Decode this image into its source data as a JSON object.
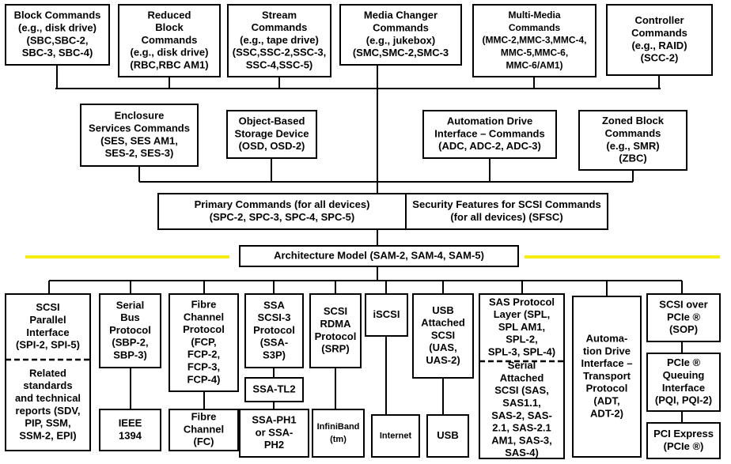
{
  "nodes": [
    {
      "lines": [
        "Block Commands",
        "(e.g., disk drive)",
        "(SBC,SBC-2,",
        "SBC-3, SBC-4)"
      ]
    },
    {
      "lines": [
        "Reduced",
        "Block",
        "Commands",
        "(e.g., disk drive)",
        "(RBC,RBC  AM1)"
      ]
    },
    {
      "lines": [
        "Stream",
        "Commands",
        "(e.g., tape drive)",
        "(SSC,SSC-2,SSC-3,",
        "SSC-4,SSC-5)"
      ]
    },
    {
      "lines": [
        "Media Changer",
        "Commands",
        "(e.g., jukebox)",
        "(SMC,SMC-2,SMC-3"
      ]
    },
    {
      "lines": [
        "Multi-Media",
        "Commands",
        "(MMC-2,MMC-3,MMC-4,",
        "MMC-5,MMC-6,",
        "MMC-6/AM1)"
      ]
    },
    {
      "lines": [
        "Controller",
        "Commands",
        "(e.g., RAID)",
        "(SCC-2)"
      ]
    },
    {
      "lines": [
        "Enclosure",
        "Services Commands",
        "(SES, SES AM1,",
        "SES-2, SES-3)"
      ]
    },
    {
      "lines": [
        "Object-Based",
        "Storage Device",
        "(OSD, OSD-2)"
      ]
    },
    {
      "lines": [
        "Automation Drive",
        "Interface – Commands",
        "(ADC, ADC-2, ADC-3)"
      ]
    },
    {
      "lines": [
        "Zoned Block",
        "Commands",
        "(e.g., SMR)",
        "(ZBC)"
      ]
    },
    {
      "lines": [
        "Primary Commands (for all devices)",
        "(SPC-2, SPC-3, SPC-4, SPC-5)"
      ]
    },
    {
      "lines": [
        "Security Features for SCSI Commands",
        "(for all devices) (SFSC)"
      ]
    },
    {
      "lines": [
        "Architecture Model (SAM-2, SAM-4, SAM-5)"
      ]
    },
    {
      "lines": [
        "SCSI",
        "Parallel",
        "Interface",
        "(SPI-2, SPI-5)"
      ],
      "lower": [
        "Related",
        "standards",
        "and technical",
        "reports (SDV,",
        "PIP, SSM,",
        "SSM-2, EPI)"
      ]
    },
    {
      "lines": [
        "Serial",
        "Bus",
        "Protocol",
        "(SBP-2,",
        "SBP-3)"
      ]
    },
    {
      "lines": [
        "IEEE",
        "1394"
      ]
    },
    {
      "lines": [
        "Fibre",
        "Channel",
        "Protocol",
        "(FCP,",
        "FCP-2,",
        "FCP-3,",
        "FCP-4)"
      ]
    },
    {
      "lines": [
        "Fibre",
        "Channel",
        "(FC)"
      ]
    },
    {
      "lines": [
        "SSA",
        "SCSI-3",
        "Protocol",
        "(SSA-",
        "S3P)"
      ]
    },
    {
      "lines": [
        "SSA-TL2"
      ]
    },
    {
      "lines": [
        "SSA-PH1",
        "or SSA-",
        "PH2"
      ]
    },
    {
      "lines": [
        "SCSI",
        "RDMA",
        "Protocol",
        "(SRP)"
      ]
    },
    {
      "lines": [
        "InfiniBand",
        "(tm)"
      ]
    },
    {
      "lines": [
        "iSCSI"
      ]
    },
    {
      "lines": [
        "Internet"
      ]
    },
    {
      "lines": [
        "USB",
        "Attached",
        "SCSI",
        "(UAS,",
        "UAS-2)"
      ]
    },
    {
      "lines": [
        "USB"
      ]
    },
    {
      "lines": [
        "SAS Protocol",
        "Layer (SPL,",
        "SPL AM1,",
        "SPL-2,",
        "SPL-3, SPL-4)"
      ],
      "lower": [
        "Serial",
        "Attached",
        "SCSI (SAS,",
        "SAS1.1,",
        "SAS-2, SAS-",
        "2.1, SAS-2.1",
        "AM1, SAS-3,",
        "SAS-4)"
      ]
    },
    {
      "lines": [
        "Automa-",
        "tion Drive",
        "Interface –",
        "Transport",
        "Protocol",
        "(ADT,",
        "ADT-2)"
      ]
    },
    {
      "lines": [
        "SCSI  over",
        "PCIe ®",
        "(SOP)"
      ]
    },
    {
      "lines": [
        "PCIe ®",
        "Queuing",
        "Interface",
        "(PQI, PQI-2)"
      ]
    },
    {
      "lines": [
        "PCI Express",
        "(PCIe ®)"
      ]
    }
  ]
}
